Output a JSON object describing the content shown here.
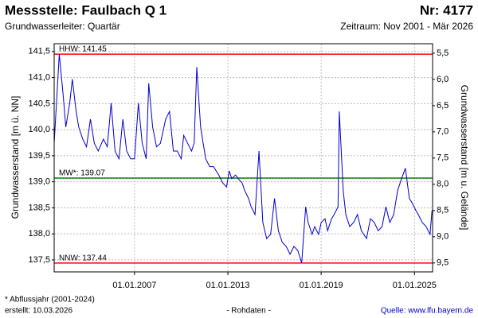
{
  "chart_data": {
    "type": "line",
    "title": "Messstelle: Faulbach Q 1",
    "number": "Nr: 4177",
    "subtitle": "Grundwasserleiter: Quartär",
    "period": "Zeitraum: Nov 2001 - Mär 2026",
    "ylabel": "Grundwasserstand [m ü. NN]",
    "y2label": "Grundwasserstand [m u. Gelände]",
    "footnote": "* Abflussjahr (2001-2024)",
    "created": "erstellt:  10.03.2026",
    "note": "- Rohdaten -",
    "source": "Quelle: www.lfu.bayern.de",
    "x": [
      "01.11.2001",
      "01.03.2002",
      "01.06.2002",
      "01.08.2002",
      "01.11.2002",
      "01.01.2003",
      "01.04.2003",
      "01.06.2003",
      "01.09.2003",
      "01.12.2003",
      "01.03.2004",
      "01.06.2004",
      "01.09.2004",
      "01.01.2005",
      "01.04.2005",
      "01.07.2005",
      "01.10.2005",
      "01.01.2006",
      "01.04.2006",
      "01.07.2006",
      "01.10.2006",
      "01.01.2007",
      "01.04.2007",
      "01.07.2007",
      "01.10.2007",
      "01.12.2007",
      "01.03.2008",
      "01.06.2008",
      "01.09.2008",
      "01.01.2009",
      "01.04.2009",
      "01.07.2009",
      "01.10.2009",
      "01.01.2010",
      "01.03.2010",
      "01.06.2010",
      "01.09.2010",
      "01.11.2010",
      "01.01.2011",
      "01.04.2011",
      "01.06.2011",
      "01.08.2011",
      "01.11.2011",
      "01.02.2012",
      "01.04.2012",
      "01.06.2012",
      "01.09.2012",
      "01.12.2012",
      "01.02.2013",
      "01.04.2013",
      "01.07.2013",
      "01.09.2013",
      "01.12.2013",
      "01.02.2014",
      "01.05.2014",
      "01.07.2014",
      "01.10.2014",
      "01.01.2015",
      "01.04.2015",
      "01.07.2015",
      "01.10.2015",
      "01.01.2016",
      "01.04.2016",
      "01.07.2016",
      "01.10.2016",
      "01.01.2017",
      "01.04.2017",
      "01.07.2017",
      "01.10.2017",
      "01.01.2018",
      "01.03.2018",
      "01.06.2018",
      "01.08.2018",
      "01.11.2018",
      "01.01.2019",
      "01.04.2019",
      "01.06.2019",
      "01.09.2019",
      "01.11.2019",
      "01.02.2020",
      "01.03.2020",
      "01.06.2020",
      "01.08.2020",
      "01.11.2020",
      "01.02.2021",
      "01.05.2021",
      "01.08.2021",
      "01.12.2021",
      "01.03.2022",
      "01.06.2022",
      "01.09.2022",
      "01.12.2022",
      "01.03.2023",
      "01.06.2023",
      "01.09.2023",
      "01.12.2023",
      "01.03.2024",
      "01.06.2024",
      "01.09.2024",
      "01.11.2024",
      "01.02.2025",
      "01.04.2025",
      "01.07.2025",
      "01.10.2025",
      "01.01.2026",
      "15.02.2026"
    ],
    "series": [
      {
        "color": "#0000cc",
        "values": [
          139.74,
          141.45,
          140.66,
          140.05,
          140.51,
          140.97,
          140.35,
          140.05,
          139.82,
          139.67,
          140.2,
          139.74,
          139.59,
          139.82,
          139.67,
          140.51,
          139.59,
          139.44,
          140.2,
          139.59,
          139.44,
          139.44,
          140.51,
          139.74,
          139.44,
          140.89,
          140.05,
          139.67,
          139.74,
          140.2,
          140.35,
          139.59,
          139.59,
          139.44,
          139.89,
          139.74,
          139.59,
          139.74,
          141.2,
          140.05,
          139.74,
          139.44,
          139.29,
          139.29,
          139.21,
          139.13,
          138.98,
          138.9,
          139.21,
          139.06,
          139.13,
          139.06,
          138.98,
          138.83,
          138.68,
          138.52,
          138.37,
          139.59,
          138.22,
          137.91,
          137.99,
          138.68,
          138.06,
          137.84,
          137.76,
          137.61,
          137.76,
          137.68,
          137.44,
          138.52,
          138.22,
          137.99,
          138.14,
          137.99,
          138.22,
          138.29,
          138.06,
          138.29,
          138.37,
          138.52,
          140.35,
          138.83,
          138.37,
          138.14,
          138.22,
          138.37,
          138.06,
          137.91,
          138.29,
          138.22,
          138.06,
          138.14,
          138.52,
          138.22,
          138.37,
          138.83,
          139.06,
          139.26,
          138.68,
          138.6,
          138.45,
          138.37,
          138.22,
          138.14,
          137.99,
          138.45
        ]
      }
    ],
    "xlim": [
      "01.11.2001",
      "01.03.2026"
    ],
    "xticks": [
      "01.01.2007",
      "01.01.2013",
      "01.01.2019",
      "01.01.2025"
    ],
    "ylim": [
      137.27,
      141.65
    ],
    "yticks": [
      {
        "value": 137.5,
        "label": "137,5"
      },
      {
        "value": 138,
        "label": "138,0"
      },
      {
        "value": 138.5,
        "label": "138,5"
      },
      {
        "value": 139,
        "label": "139,0"
      },
      {
        "value": 139.5,
        "label": "139,5"
      },
      {
        "value": 140,
        "label": "140,0"
      },
      {
        "value": 140.5,
        "label": "140,5"
      },
      {
        "value": 141,
        "label": "141,0"
      },
      {
        "value": 141.5,
        "label": "141,5"
      }
    ],
    "y2lim": [
      9.67,
      5.32
    ],
    "y2ticks": [
      {
        "value": 5.5,
        "label": "5,5"
      },
      {
        "value": 6,
        "label": "6,0"
      },
      {
        "value": 6.5,
        "label": "6,5"
      },
      {
        "value": 7,
        "label": "7,0"
      },
      {
        "value": 7.5,
        "label": "7,5"
      },
      {
        "value": 8,
        "label": "8,0"
      },
      {
        "value": 8.5,
        "label": "8,5"
      },
      {
        "value": 9,
        "label": "9,0"
      },
      {
        "value": 9.5,
        "label": "9,5"
      }
    ],
    "grid": true,
    "reference_lines": [
      {
        "label": "HHW: 141.45",
        "value": 141.45,
        "color": "#ff0000"
      },
      {
        "label": "MW*: 139.07",
        "value": 139.07,
        "color": "#008000"
      },
      {
        "label": "NNW: 137.44",
        "value": 137.44,
        "color": "#ff0000"
      }
    ]
  }
}
